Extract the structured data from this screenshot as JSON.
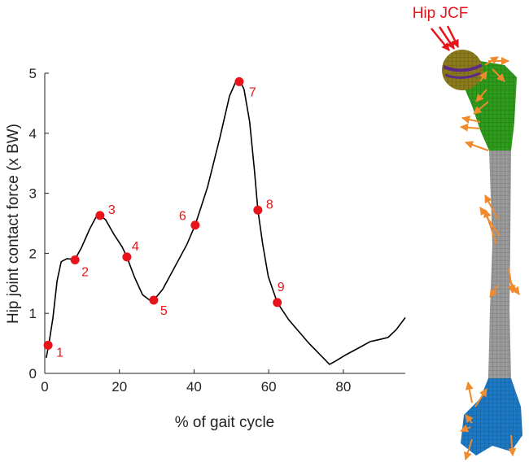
{
  "chart_data": {
    "type": "line",
    "xlabel": "% of gait cycle",
    "ylabel": "Hip joint contact force (x BW)",
    "annotation": "Hip JCF",
    "xlim": [
      0,
      96.6
    ],
    "ylim": [
      0,
      5
    ],
    "xticks": [
      0,
      20,
      40,
      60,
      80
    ],
    "yticks": [
      0,
      1,
      2,
      3,
      4,
      5
    ],
    "series": [
      {
        "color": "#000000",
        "x": [
          0.4,
          1.1,
          2.2,
          3.3,
          4.4,
          5.9,
          8.1,
          9.8,
          12,
          13.7,
          14.8,
          16.3,
          18.5,
          20.7,
          22,
          24,
          26.2,
          28.3,
          29.2,
          31.6,
          34.9,
          38.1,
          40.3,
          43.6,
          46.9,
          49.5,
          51.2,
          52.3,
          53.4,
          54.9,
          56.2,
          57.1,
          58.4,
          59.9,
          62.3,
          65.4,
          70.8,
          76.3,
          77.8,
          80.7,
          84,
          87.2,
          89.4,
          92,
          94.2,
          96.6
        ],
        "values": [
          0.26,
          0.49,
          0.93,
          1.54,
          1.86,
          1.91,
          1.9,
          2.09,
          2.4,
          2.6,
          2.63,
          2.56,
          2.32,
          2.11,
          1.94,
          1.61,
          1.31,
          1.21,
          1.22,
          1.4,
          1.78,
          2.15,
          2.47,
          3.1,
          3.92,
          4.62,
          4.86,
          4.88,
          4.73,
          4.19,
          3.37,
          2.72,
          2.15,
          1.61,
          1.18,
          0.89,
          0.5,
          0.15,
          0.2,
          0.31,
          0.42,
          0.53,
          0.56,
          0.6,
          0.73,
          0.93
        ]
      }
    ],
    "points": {
      "color": "#e8141b",
      "x": [
        0.9,
        8.1,
        14.8,
        22,
        29.2,
        40.3,
        52.1,
        57.1,
        62.3
      ],
      "values": [
        0.47,
        1.89,
        2.63,
        1.94,
        1.22,
        2.47,
        4.86,
        2.72,
        1.18
      ],
      "labels": [
        "1",
        "2",
        "3",
        "4",
        "5",
        "6",
        "7",
        "8",
        "9"
      ]
    }
  }
}
